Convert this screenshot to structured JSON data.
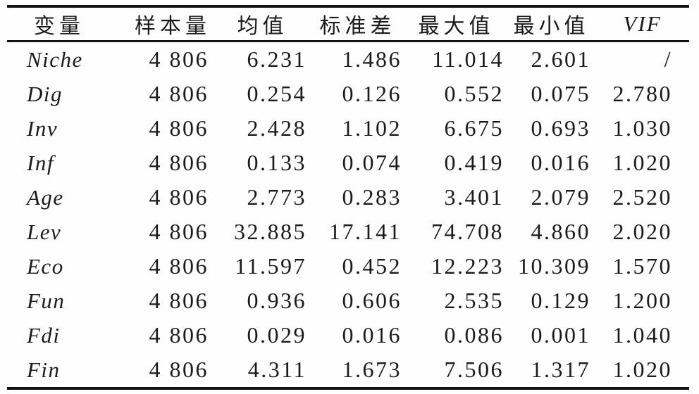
{
  "table": {
    "columns": [
      "变量",
      "样本量",
      "均值",
      "标准差",
      "最大值",
      "最小值",
      "VIF"
    ],
    "rows": [
      {
        "variable": "Niche",
        "n": "4 806",
        "mean": "6.231",
        "sd": "1.486",
        "max": "11.014",
        "min": "2.601",
        "vif": "/"
      },
      {
        "variable": "Dig",
        "n": "4 806",
        "mean": "0.254",
        "sd": "0.126",
        "max": "0.552",
        "min": "0.075",
        "vif": "2.780"
      },
      {
        "variable": "Inv",
        "n": "4 806",
        "mean": "2.428",
        "sd": "1.102",
        "max": "6.675",
        "min": "0.693",
        "vif": "1.030"
      },
      {
        "variable": "Inf",
        "n": "4 806",
        "mean": "0.133",
        "sd": "0.074",
        "max": "0.419",
        "min": "0.016",
        "vif": "1.020"
      },
      {
        "variable": "Age",
        "n": "4 806",
        "mean": "2.773",
        "sd": "0.283",
        "max": "3.401",
        "min": "2.079",
        "vif": "2.520"
      },
      {
        "variable": "Lev",
        "n": "4 806",
        "mean": "32.885",
        "sd": "17.141",
        "max": "74.708",
        "min": "4.860",
        "vif": "2.020"
      },
      {
        "variable": "Eco",
        "n": "4 806",
        "mean": "11.597",
        "sd": "0.452",
        "max": "12.223",
        "min": "10.309",
        "vif": "1.570"
      },
      {
        "variable": "Fun",
        "n": "4 806",
        "mean": "0.936",
        "sd": "0.606",
        "max": "2.535",
        "min": "0.129",
        "vif": "1.200"
      },
      {
        "variable": "Fdi",
        "n": "4 806",
        "mean": "0.029",
        "sd": "0.016",
        "max": "0.086",
        "min": "0.001",
        "vif": "1.040"
      },
      {
        "variable": "Fin",
        "n": "4 806",
        "mean": "4.311",
        "sd": "1.673",
        "max": "7.506",
        "min": "1.317",
        "vif": "1.020"
      }
    ]
  },
  "colors": {
    "rule": "#121212",
    "text": "#1b1b1b",
    "background": "#fefefe"
  }
}
